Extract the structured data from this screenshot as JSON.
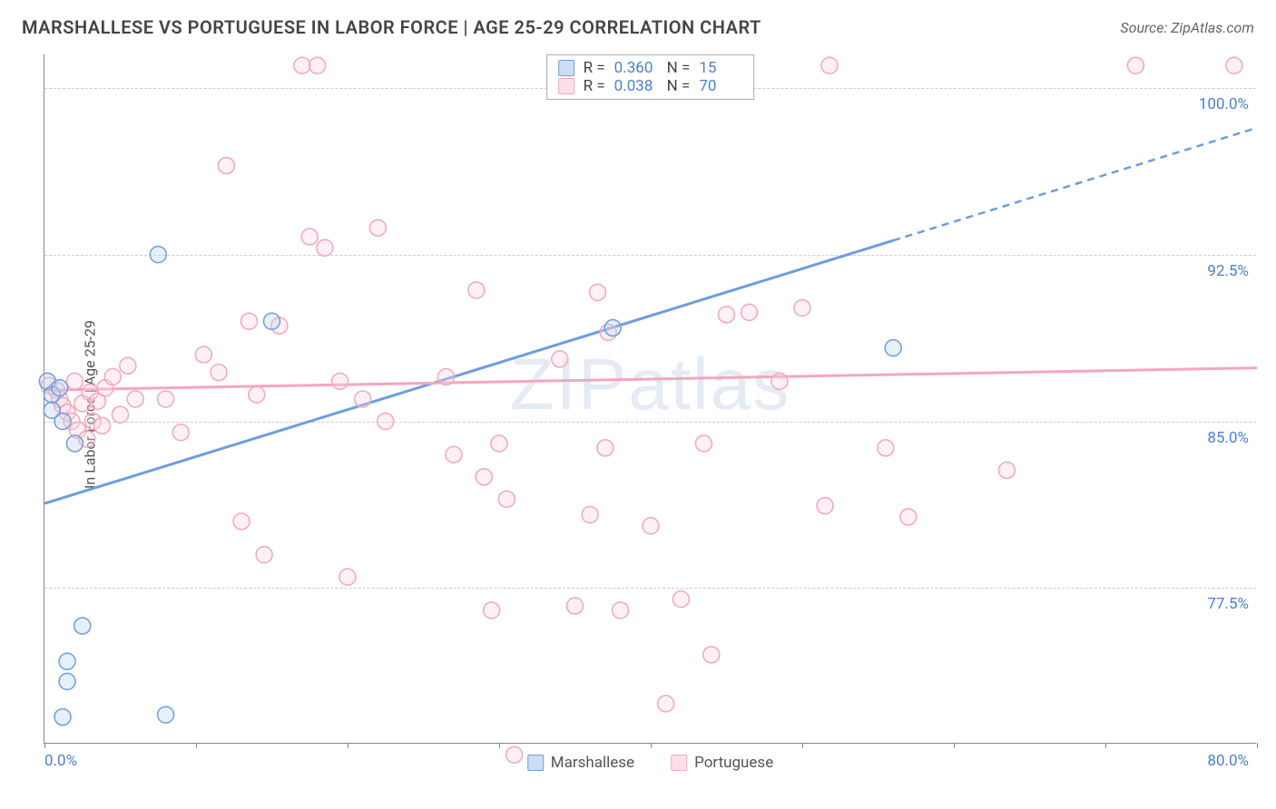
{
  "title": "MARSHALLESE VS PORTUGUESE IN LABOR FORCE | AGE 25-29 CORRELATION CHART",
  "source": "Source: ZipAtlas.com",
  "watermark": "ZIPatlas",
  "ylabel": "In Labor Force | Age 25-29",
  "chart": {
    "type": "scatter",
    "background_color": "#ffffff",
    "grid_color": "#cccccc",
    "axis_color": "#888888",
    "xlim": [
      0,
      80
    ],
    "ylim": [
      70.5,
      101.5
    ],
    "ytick_values": [
      77.5,
      85.0,
      92.5,
      100.0
    ],
    "ytick_labels": [
      "77.5%",
      "85.0%",
      "92.5%",
      "100.0%"
    ],
    "xtick_values": [
      0,
      10,
      20,
      30,
      40,
      50,
      60,
      70,
      80
    ],
    "xaxis_left_label": "0.0%",
    "xaxis_right_label": "80.0%",
    "marker_radius": 9,
    "marker_opacity": 0.35,
    "label_fontsize": 17,
    "title_fontsize": 20,
    "series": [
      {
        "name": "Marshallese",
        "color_fill": "#b8d0f0",
        "color_stroke": "#6c9ee0",
        "R": "0.360",
        "N": "15",
        "points": [
          [
            0.2,
            86.8
          ],
          [
            0.5,
            86.2
          ],
          [
            0.5,
            85.5
          ],
          [
            1.0,
            86.5
          ],
          [
            1.2,
            85.0
          ],
          [
            2.0,
            84.0
          ],
          [
            2.5,
            75.8
          ],
          [
            1.5,
            74.2
          ],
          [
            1.5,
            73.3
          ],
          [
            1.2,
            71.7
          ],
          [
            7.5,
            92.5
          ],
          [
            8.0,
            71.8
          ],
          [
            15.0,
            89.5
          ],
          [
            37.5,
            89.2
          ],
          [
            56.0,
            88.3
          ]
        ],
        "trend": {
          "y_at_x0": 81.3,
          "y_at_x80": 98.2,
          "solid_until_x": 56,
          "dashed": true
        }
      },
      {
        "name": "Portuguese",
        "color_fill": "#fbd5e0",
        "color_stroke": "#f4a6bd",
        "R": "0.038",
        "N": "70",
        "points": [
          [
            0.3,
            86.6
          ],
          [
            0.8,
            86.4
          ],
          [
            1.0,
            86.0
          ],
          [
            1.2,
            85.7
          ],
          [
            1.5,
            85.4
          ],
          [
            1.8,
            85.0
          ],
          [
            2.0,
            86.8
          ],
          [
            2.2,
            84.6
          ],
          [
            2.5,
            85.8
          ],
          [
            2.8,
            84.2
          ],
          [
            3.0,
            86.3
          ],
          [
            3.2,
            85.0
          ],
          [
            3.5,
            85.9
          ],
          [
            3.8,
            84.8
          ],
          [
            4.0,
            86.5
          ],
          [
            4.5,
            87.0
          ],
          [
            5.0,
            85.3
          ],
          [
            5.5,
            87.5
          ],
          [
            6.0,
            86.0
          ],
          [
            9.0,
            84.5
          ],
          [
            12.0,
            96.5
          ],
          [
            10.5,
            88.0
          ],
          [
            11.5,
            87.2
          ],
          [
            13.0,
            80.5
          ],
          [
            13.5,
            89.5
          ],
          [
            14.0,
            86.2
          ],
          [
            15.5,
            89.3
          ],
          [
            17.0,
            101.0
          ],
          [
            18.0,
            101.0
          ],
          [
            17.5,
            93.3
          ],
          [
            18.5,
            92.8
          ],
          [
            19.5,
            86.8
          ],
          [
            20.0,
            78.0
          ],
          [
            21.0,
            86.0
          ],
          [
            22.0,
            93.7
          ],
          [
            22.5,
            85.0
          ],
          [
            26.5,
            87.0
          ],
          [
            27.0,
            83.5
          ],
          [
            28.5,
            90.9
          ],
          [
            29.5,
            76.5
          ],
          [
            29.0,
            82.5
          ],
          [
            30.0,
            84.0
          ],
          [
            30.5,
            81.5
          ],
          [
            31.0,
            70.0
          ],
          [
            34.0,
            87.8
          ],
          [
            35.0,
            76.7
          ],
          [
            36.0,
            80.8
          ],
          [
            36.5,
            90.8
          ],
          [
            37.0,
            83.8
          ],
          [
            37.2,
            89.0
          ],
          [
            38.0,
            76.5
          ],
          [
            40.0,
            80.3
          ],
          [
            41.0,
            72.3
          ],
          [
            42.0,
            77.0
          ],
          [
            43.5,
            84.0
          ],
          [
            44.0,
            74.5
          ],
          [
            44.5,
            101.0
          ],
          [
            45.0,
            89.8
          ],
          [
            46.5,
            89.9
          ],
          [
            48.5,
            86.8
          ],
          [
            50.0,
            90.1
          ],
          [
            51.5,
            81.2
          ],
          [
            51.8,
            101.0
          ],
          [
            55.5,
            83.8
          ],
          [
            57.0,
            80.7
          ],
          [
            63.5,
            82.8
          ],
          [
            72.0,
            101.0
          ],
          [
            78.5,
            101.0
          ],
          [
            14.5,
            79.0
          ],
          [
            8.0,
            86.0
          ]
        ],
        "trend": {
          "y_at_x0": 86.4,
          "y_at_x80": 87.4,
          "solid_until_x": 80,
          "dashed": false
        }
      }
    ]
  },
  "bottom_legend": [
    {
      "swatch": "blue",
      "label": "Marshallese"
    },
    {
      "swatch": "pink",
      "label": "Portuguese"
    }
  ]
}
